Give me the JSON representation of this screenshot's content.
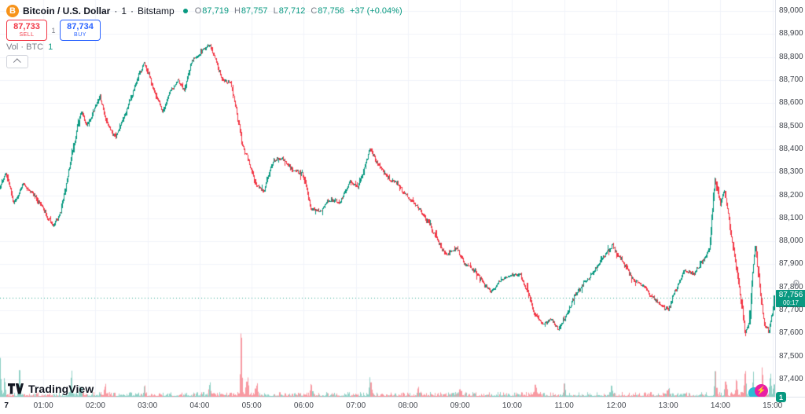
{
  "legend": {
    "coin_letter": "B",
    "symbol": "Bitcoin / U.S. Dollar",
    "separator": "·",
    "interval": "1",
    "exchange": "Bitstamp",
    "ohlc": {
      "o_label": "O",
      "o": "87,719",
      "h_label": "H",
      "h": "87,757",
      "l_label": "L",
      "l": "87,712",
      "c_label": "C",
      "c": "87,756",
      "change": "+37 (+0.04%)"
    }
  },
  "trade": {
    "sell_price": "87,733",
    "sell_label": "SELL",
    "spread": "1",
    "buy_price": "87,734",
    "buy_label": "BUY"
  },
  "volume_row": {
    "label": "Vol · BTC",
    "value": "1"
  },
  "logo": {
    "text": "TradingView"
  },
  "badges": {
    "notification": "1"
  },
  "icons": {
    "bolt": "⚡",
    "gear": "⚙"
  },
  "colors": {
    "up": "#089981",
    "down": "#f23645",
    "accent_blue": "#2962ff",
    "bitcoin_orange": "#f7931a",
    "grid": "#f0f3fa",
    "axis_border": "#e0e3eb",
    "axis_text": "#42464e",
    "badge_green": "#089981",
    "boost_magenta": "#e91ea4",
    "boost_teal": "#2bbcd4"
  },
  "price_axis": {
    "ticks": [
      89000,
      88900,
      88800,
      88700,
      88600,
      88500,
      88400,
      88300,
      88200,
      88100,
      88000,
      87900,
      87800,
      87700,
      87600,
      87500,
      87400
    ],
    "current": {
      "label": "87,756",
      "countdown": "00:17",
      "value": 87756
    }
  },
  "time_axis": {
    "day_label": "7",
    "day_hour": 0.29,
    "ticks": [
      {
        "label": "01:00",
        "hour": 1
      },
      {
        "label": "02:00",
        "hour": 2
      },
      {
        "label": "03:00",
        "hour": 3
      },
      {
        "label": "04:00",
        "hour": 4
      },
      {
        "label": "05:00",
        "hour": 5
      },
      {
        "label": "06:00",
        "hour": 6
      },
      {
        "label": "07:00",
        "hour": 7
      },
      {
        "label": "08:00",
        "hour": 8
      },
      {
        "label": "09:00",
        "hour": 9
      },
      {
        "label": "10:00",
        "hour": 10
      },
      {
        "label": "11:00",
        "hour": 11
      },
      {
        "label": "12:00",
        "hour": 12
      },
      {
        "label": "13:00",
        "hour": 13
      },
      {
        "label": "14:00",
        "hour": 14
      },
      {
        "label": "15:00",
        "hour": 15
      }
    ]
  },
  "chart_data": {
    "type": "candlestick",
    "pair": "BTC/USD",
    "exchange": "Bitstamp",
    "interval": "1 minute",
    "grid": "on",
    "up_color": "#089981",
    "down_color": "#f23645",
    "volume_up_color": "rgba(8,153,129,0.45)",
    "volume_down_color": "rgba(242,54,69,0.5)",
    "price_line_color": "rgba(8,153,129,0.85)",
    "time_start_hour": 0.167,
    "time_end_hour": 15.05,
    "price_view_max": 89048,
    "price_view_min": 87325,
    "last_price": 87756,
    "session_high": 88900,
    "session_low": 87480,
    "ohlc_current": {
      "open": 87719,
      "high": 87757,
      "low": 87712,
      "close": 87756,
      "change": 37,
      "change_pct": 0.04
    },
    "price_waypoints": [
      [
        0.17,
        88230
      ],
      [
        0.3,
        88300
      ],
      [
        0.45,
        88160
      ],
      [
        0.62,
        88250
      ],
      [
        0.8,
        88210
      ],
      [
        1.0,
        88150
      ],
      [
        1.2,
        88060
      ],
      [
        1.35,
        88130
      ],
      [
        1.5,
        88300
      ],
      [
        1.65,
        88480
      ],
      [
        1.75,
        88560
      ],
      [
        1.85,
        88500
      ],
      [
        2.0,
        88580
      ],
      [
        2.1,
        88630
      ],
      [
        2.25,
        88500
      ],
      [
        2.4,
        88450
      ],
      [
        2.6,
        88560
      ],
      [
        2.75,
        88660
      ],
      [
        2.95,
        88780
      ],
      [
        3.1,
        88680
      ],
      [
        3.3,
        88560
      ],
      [
        3.45,
        88650
      ],
      [
        3.6,
        88700
      ],
      [
        3.72,
        88650
      ],
      [
        3.85,
        88780
      ],
      [
        4.0,
        88810
      ],
      [
        4.2,
        88860
      ],
      [
        4.32,
        88790
      ],
      [
        4.45,
        88700
      ],
      [
        4.6,
        88690
      ],
      [
        4.72,
        88570
      ],
      [
        4.82,
        88430
      ],
      [
        4.95,
        88350
      ],
      [
        5.1,
        88240
      ],
      [
        5.25,
        88220
      ],
      [
        5.42,
        88350
      ],
      [
        5.6,
        88360
      ],
      [
        5.8,
        88310
      ],
      [
        6.0,
        88290
      ],
      [
        6.15,
        88140
      ],
      [
        6.32,
        88130
      ],
      [
        6.5,
        88180
      ],
      [
        6.7,
        88170
      ],
      [
        6.9,
        88260
      ],
      [
        7.05,
        88230
      ],
      [
        7.28,
        88400
      ],
      [
        7.45,
        88330
      ],
      [
        7.6,
        88280
      ],
      [
        7.8,
        88250
      ],
      [
        8.0,
        88190
      ],
      [
        8.2,
        88150
      ],
      [
        8.4,
        88080
      ],
      [
        8.6,
        87990
      ],
      [
        8.75,
        87940
      ],
      [
        8.95,
        87970
      ],
      [
        9.1,
        87900
      ],
      [
        9.3,
        87870
      ],
      [
        9.45,
        87820
      ],
      [
        9.6,
        87780
      ],
      [
        9.78,
        87830
      ],
      [
        9.95,
        87850
      ],
      [
        10.15,
        87860
      ],
      [
        10.3,
        87780
      ],
      [
        10.45,
        87680
      ],
      [
        10.6,
        87640
      ],
      [
        10.75,
        87660
      ],
      [
        10.9,
        87620
      ],
      [
        11.05,
        87680
      ],
      [
        11.2,
        87760
      ],
      [
        11.4,
        87820
      ],
      [
        11.55,
        87860
      ],
      [
        11.75,
        87930
      ],
      [
        11.93,
        87980
      ],
      [
        12.1,
        87920
      ],
      [
        12.25,
        87860
      ],
      [
        12.4,
        87820
      ],
      [
        12.55,
        87800
      ],
      [
        12.7,
        87760
      ],
      [
        12.85,
        87720
      ],
      [
        13.0,
        87700
      ],
      [
        13.15,
        87790
      ],
      [
        13.3,
        87870
      ],
      [
        13.5,
        87860
      ],
      [
        13.65,
        87910
      ],
      [
        13.78,
        87960
      ],
      [
        13.9,
        88270
      ],
      [
        14.0,
        88160
      ],
      [
        14.08,
        88220
      ],
      [
        14.17,
        88090
      ],
      [
        14.27,
        87940
      ],
      [
        14.37,
        87800
      ],
      [
        14.47,
        87600
      ],
      [
        14.55,
        87640
      ],
      [
        14.62,
        87880
      ],
      [
        14.68,
        87990
      ],
      [
        14.75,
        87800
      ],
      [
        14.85,
        87640
      ],
      [
        14.93,
        87610
      ],
      [
        15.0,
        87690
      ],
      [
        15.05,
        87756
      ]
    ],
    "volume_spikes": [
      [
        0.17,
        60
      ],
      [
        0.27,
        22
      ],
      [
        0.55,
        34
      ],
      [
        1.55,
        28
      ],
      [
        1.72,
        14
      ],
      [
        2.2,
        12
      ],
      [
        2.95,
        12
      ],
      [
        4.2,
        16
      ],
      [
        4.8,
        85
      ],
      [
        4.92,
        28
      ],
      [
        5.1,
        14
      ],
      [
        6.15,
        12
      ],
      [
        7.28,
        24
      ],
      [
        8.2,
        12
      ],
      [
        9.0,
        10
      ],
      [
        10.45,
        12
      ],
      [
        11.0,
        14
      ],
      [
        11.9,
        12
      ],
      [
        13.0,
        10
      ],
      [
        13.9,
        30
      ],
      [
        14.1,
        20
      ],
      [
        14.3,
        22
      ],
      [
        14.47,
        44
      ],
      [
        14.62,
        26
      ],
      [
        14.8,
        32
      ],
      [
        14.95,
        26
      ],
      [
        15.03,
        18
      ]
    ]
  }
}
